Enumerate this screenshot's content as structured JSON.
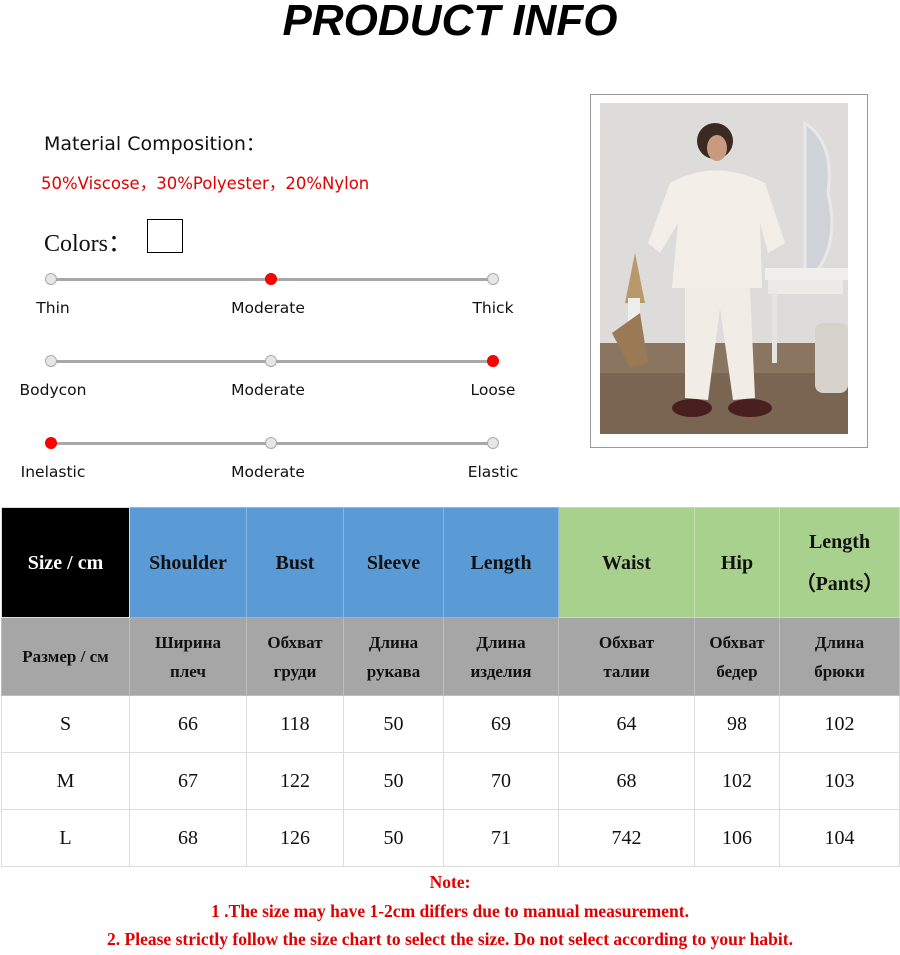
{
  "title": "PRODUCT INFO",
  "material": {
    "label": "Material Composition：",
    "value": "50%Viscose，30%Polyester，20%Nylon"
  },
  "colors": {
    "label": "Colors：",
    "swatches": [
      "#ffffff"
    ]
  },
  "scales": [
    {
      "labels": [
        "Thin",
        "Moderate",
        "Thick"
      ],
      "selected": 1
    },
    {
      "labels": [
        "Bodycon",
        "Moderate",
        "Loose"
      ],
      "selected": 2
    },
    {
      "labels": [
        "Inelastic",
        "Moderate",
        "Elastic"
      ],
      "selected": 0
    }
  ],
  "accent_color": "#ff0000",
  "size_table": {
    "headers_en": [
      "Size / cm",
      "Shoulder",
      "Bust",
      "Sleeve",
      "Length",
      "Waist",
      "Hip",
      "Length\n（Pants）"
    ],
    "headers_ru": [
      "Размер / см",
      "Ширина\nплеч",
      "Обхват\nгруди",
      "Длина\nрукава",
      "Длина\nизделия",
      "Обхват\nталии",
      "Обхват\nбедер",
      "Длина\nбрюки"
    ],
    "rows": [
      [
        "S",
        "66",
        "118",
        "50",
        "69",
        "64",
        "98",
        "102"
      ],
      [
        "M",
        "67",
        "122",
        "50",
        "70",
        "68",
        "102",
        "103"
      ],
      [
        "L",
        "68",
        "126",
        "50",
        "71",
        "742",
        "106",
        "104"
      ]
    ]
  },
  "notes": {
    "heading": "Note:",
    "lines": [
      "1 .The size may have 1-2cm differs due to manual measurement.",
      "2. Please strictly follow the size chart to select the size. Do not select according to your habit."
    ]
  }
}
